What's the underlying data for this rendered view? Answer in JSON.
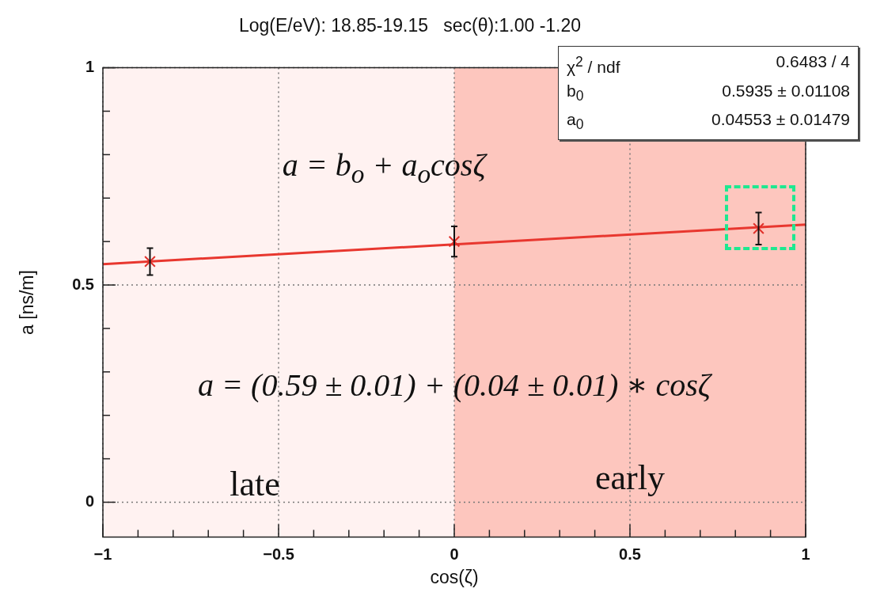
{
  "chart_data": {
    "type": "scatter",
    "title": "Log(E/eV): 18.85-19.15   sec(θ):1.00 -1.20",
    "xlabel": "cos(ζ)",
    "ylabel": "a [ns/m]",
    "xlim": [
      -1,
      1
    ],
    "ylim": [
      -0.08,
      1
    ],
    "xticks": [
      -1,
      {
        "value": -0.9,
        "label": null
      },
      {
        "value": -0.8,
        "label": null
      },
      {
        "value": -0.7,
        "label": null
      },
      {
        "value": -0.6,
        "label": null
      },
      -0.5,
      {
        "value": -0.4,
        "label": null
      },
      {
        "value": -0.3,
        "label": null
      },
      {
        "value": -0.2,
        "label": null
      },
      {
        "value": -0.1,
        "label": null
      },
      0,
      {
        "value": 0.1,
        "label": null
      },
      {
        "value": 0.2,
        "label": null
      },
      {
        "value": 0.3,
        "label": null
      },
      {
        "value": 0.4,
        "label": null
      },
      0.5,
      {
        "value": 0.6,
        "label": null
      },
      {
        "value": 0.7,
        "label": null
      },
      {
        "value": 0.8,
        "label": null
      },
      {
        "value": 0.9,
        "label": null
      },
      1
    ],
    "yticks": [
      0,
      {
        "value": 0.1,
        "label": null
      },
      {
        "value": 0.2,
        "label": null
      },
      {
        "value": 0.3,
        "label": null
      },
      {
        "value": 0.4,
        "label": null
      },
      0.5,
      {
        "value": 0.6,
        "label": null
      },
      {
        "value": 0.7,
        "label": null
      },
      {
        "value": 0.8,
        "label": null
      },
      {
        "value": 0.9,
        "label": null
      },
      1
    ],
    "grid": true,
    "legend": false,
    "series": [
      {
        "marker": "cross",
        "color": "#e0302a",
        "x": [
          -0.866,
          0,
          0.866
        ],
        "values": [
          0.554,
          0.6,
          0.63
        ],
        "errors": [
          0.031,
          0.035,
          0.037
        ]
      },
      {
        "type": "line",
        "marker": "none",
        "color": "#e8372f",
        "x": [
          -1,
          1
        ],
        "values": [
          0.548,
          0.639
        ]
      }
    ],
    "bands": [
      {
        "axis": "x",
        "from": -1,
        "to": 0,
        "label": "late",
        "color": "#fff2f1"
      },
      {
        "axis": "x",
        "from": 0,
        "to": 1,
        "label": "early",
        "color": "#fdc6be"
      }
    ],
    "annotations": [
      "a = b$_{o}$ + a$_{o}$cosζ",
      "a = (0.59 ± 0.01) + (0.04 ± 0.01) ∗ cosζ",
      "χ$^{2}$ / ndf",
      "0.6483 / 4",
      "b$_{0}$",
      "0.5935 ± 0.01108",
      "a$_{0}$",
      "0.04553 ± 0.01479"
    ]
  }
}
